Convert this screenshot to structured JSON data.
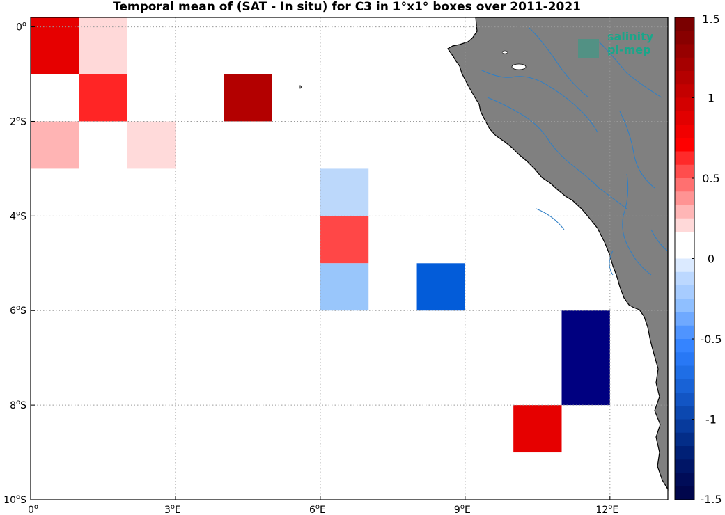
{
  "title": "Temporal mean of (SAT - In situ) for C3 in 1°x1° boxes over 2011-2021",
  "logo": {
    "line1": "salinity",
    "line2": "pi-mep",
    "color": "#1aa68a"
  },
  "x_ticks": [
    {
      "value": 0,
      "label": "0",
      "sup": "o",
      "suffix": ""
    },
    {
      "value": 3,
      "label": "3",
      "sup": "o",
      "suffix": "E"
    },
    {
      "value": 6,
      "label": "6",
      "sup": "o",
      "suffix": "E"
    },
    {
      "value": 9,
      "label": "9",
      "sup": "o",
      "suffix": "E"
    },
    {
      "value": 12,
      "label": "12",
      "sup": "o",
      "suffix": "E"
    }
  ],
  "y_ticks": [
    {
      "value": 0,
      "label": "0",
      "sup": "o",
      "suffix": ""
    },
    {
      "value": -2,
      "label": "2",
      "sup": "o",
      "suffix": "S"
    },
    {
      "value": -4,
      "label": "4",
      "sup": "o",
      "suffix": "S"
    },
    {
      "value": -6,
      "label": "6",
      "sup": "o",
      "suffix": "S"
    },
    {
      "value": -8,
      "label": "8",
      "sup": "o",
      "suffix": "S"
    },
    {
      "value": -10,
      "label": "10",
      "sup": "o",
      "suffix": "S"
    }
  ],
  "colorbar": {
    "ticks": [
      {
        "value": 1.5,
        "label": "1.5"
      },
      {
        "value": 1,
        "label": "1"
      },
      {
        "value": 0.5,
        "label": "0.5"
      },
      {
        "value": 0,
        "label": "0"
      },
      {
        "value": -0.5,
        "label": "-0.5"
      },
      {
        "value": -1,
        "label": "-1"
      },
      {
        "value": -1.5,
        "label": "-1.5"
      }
    ],
    "colors_top_to_bottom": [
      "#7a0000",
      "#880000",
      "#970000",
      "#a60000",
      "#b50000",
      "#c40000",
      "#d30000",
      "#e20000",
      "#f10000",
      "#ff0000",
      "#ff2a2a",
      "#ff4d4d",
      "#ff7070",
      "#ff9393",
      "#ffb6b6",
      "#ffd9d9",
      "#ffffff",
      "#ffffff",
      "#dbeaff",
      "#bcd8ff",
      "#a7ccff",
      "#8fbfff",
      "#6fa9ff",
      "#4f94ff",
      "#3584ff",
      "#2878f5",
      "#1f6ee6",
      "#1862d6",
      "#1255c4",
      "#0c48b0",
      "#073a9c",
      "#032d88",
      "#002076",
      "#001566",
      "#000c58",
      "#00064c"
    ]
  },
  "chart_data": {
    "type": "heatmap",
    "title": "Temporal mean of (SAT - In situ) for C3 in 1°x1° boxes over 2011-2021",
    "x_range_lon": [
      0,
      13.2
    ],
    "y_range_lat": [
      -10,
      0.2
    ],
    "value_range": [
      -1.5,
      1.5
    ],
    "cells": [
      {
        "lon0": 0,
        "lat0": 0.2,
        "lon1": 1,
        "lat1": -1,
        "value": 0.9,
        "color": "#e60000"
      },
      {
        "lon0": 1,
        "lat0": 0.2,
        "lon1": 2,
        "lat1": -1,
        "value": 0.1,
        "color": "#ffd9d9"
      },
      {
        "lon0": 1,
        "lat0": -1,
        "lon1": 2,
        "lat1": -2,
        "value": 0.7,
        "color": "#ff2525"
      },
      {
        "lon0": 4,
        "lat0": -1,
        "lon1": 5,
        "lat1": -2,
        "value": 1.3,
        "color": "#b30000"
      },
      {
        "lon0": 0,
        "lat0": -2,
        "lon1": 1,
        "lat1": -3,
        "value": 0.2,
        "color": "#ffb4b4"
      },
      {
        "lon0": 2,
        "lat0": -2,
        "lon1": 3,
        "lat1": -3,
        "value": 0.1,
        "color": "#ffdada"
      },
      {
        "lon0": 6,
        "lat0": -3,
        "lon1": 7,
        "lat1": -4,
        "value": -0.1,
        "color": "#bcd8fb"
      },
      {
        "lon0": 6,
        "lat0": -4,
        "lon1": 7,
        "lat1": -5,
        "value": 0.5,
        "color": "#ff4747"
      },
      {
        "lon0": 6,
        "lat0": -5,
        "lon1": 7,
        "lat1": -6,
        "value": -0.2,
        "color": "#99c6fb"
      },
      {
        "lon0": 8,
        "lat0": -5,
        "lon1": 9,
        "lat1": -6,
        "value": -0.95,
        "color": "#035cd9"
      },
      {
        "lon0": 11,
        "lat0": -6,
        "lon1": 12,
        "lat1": -8,
        "value": -1.5,
        "color": "#000080"
      },
      {
        "lon0": 10,
        "lat0": -8,
        "lon1": 11,
        "lat1": -9,
        "value": 0.9,
        "color": "#e60000"
      }
    ],
    "land_color": "#808080",
    "river_color": "#2f7fc6",
    "grid": true
  }
}
